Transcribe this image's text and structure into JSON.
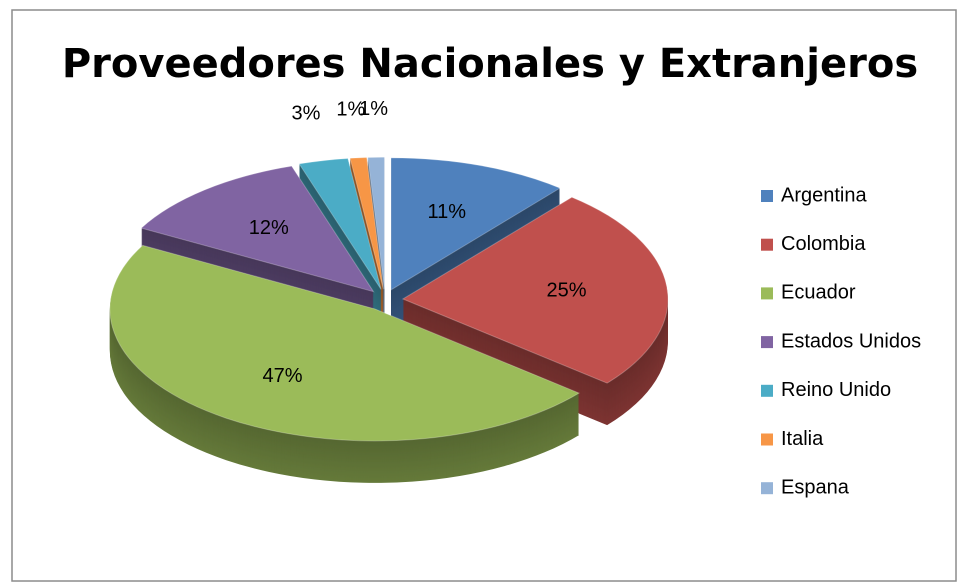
{
  "chart_data": {
    "type": "pie",
    "title": "Proveedores Nacionales y Extranjeros",
    "categories": [
      "Argentina",
      "Colombia",
      "Ecuador",
      "Estados Unidos",
      "Reino Unido",
      "Italia",
      "Espana"
    ],
    "values": [
      11,
      25,
      47,
      12,
      3,
      1,
      1
    ],
    "value_labels": [
      "11%",
      "25%",
      "47%",
      "12%",
      "3%",
      "1%",
      "1%"
    ],
    "colors": [
      "#4f81bd",
      "#c0504d",
      "#9bbb59",
      "#8064a2",
      "#4bacc6",
      "#f79646",
      "#95b3d7"
    ],
    "legend": "right"
  }
}
